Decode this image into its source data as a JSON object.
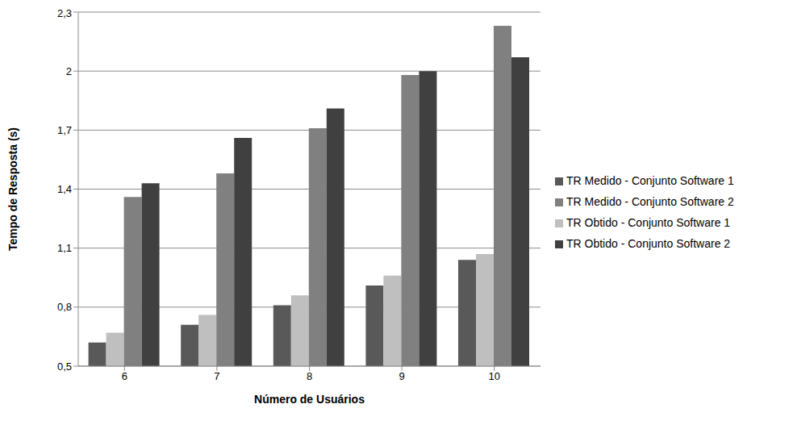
{
  "chart_data": {
    "type": "bar",
    "x_label": "Número de Usuários",
    "y_label": "Tempo de Resposta (s)",
    "categories": [
      6,
      7,
      8,
      9,
      10
    ],
    "series": [
      {
        "name": "TR Medido  - Conjunto Software 1",
        "color": "#595959",
        "values": [
          0.62,
          0.71,
          0.81,
          0.91,
          1.04
        ]
      },
      {
        "name": "TR Obtido  - Conjunto Software 1",
        "color": "#bfbfbf",
        "values": [
          0.67,
          0.76,
          0.86,
          0.96,
          1.07
        ]
      },
      {
        "name": "TR Medido  - Conjunto Software 2",
        "color": "#808080",
        "values": [
          1.36,
          1.48,
          1.71,
          1.98,
          2.23
        ]
      },
      {
        "name": "TR Obtido  - Conjunto Software 2",
        "color": "#404040",
        "values": [
          1.43,
          1.66,
          1.81,
          2.0,
          2.07
        ]
      }
    ],
    "ylim": [
      0.5,
      2.3
    ],
    "yticks": [
      {
        "value": 0.5,
        "label": "0,5"
      },
      {
        "value": 0.8,
        "label": "0,8"
      },
      {
        "value": 1.1,
        "label": "1,1"
      },
      {
        "value": 1.4,
        "label": "1,4"
      },
      {
        "value": 1.7,
        "label": "1,7"
      },
      2,
      {
        "value": 2.3,
        "label": "2,3"
      }
    ],
    "grid": true,
    "legend": "right"
  }
}
